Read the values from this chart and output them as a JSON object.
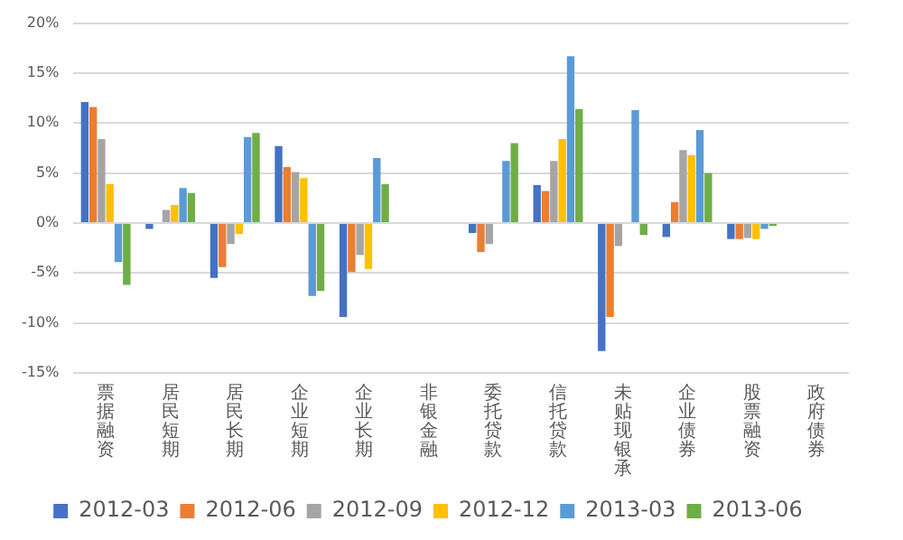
{
  "chart_data": {
    "type": "bar",
    "categories": [
      "票据融资",
      "居民短期",
      "居民长期",
      "企业短期",
      "企业长期",
      "非银金融",
      "委托贷款",
      "信托贷款",
      "未贴现银承",
      "企业债券",
      "股票融资",
      "政府债券"
    ],
    "series": [
      {
        "name": "2012-03",
        "color": "#4472c4",
        "values": [
          12.1,
          -0.6,
          -5.5,
          7.7,
          -9.4,
          null,
          -1.0,
          3.8,
          -12.8,
          -1.4,
          -1.6,
          null
        ]
      },
      {
        "name": "2012-06",
        "color": "#ed7d31",
        "values": [
          11.6,
          0,
          -4.4,
          5.6,
          -4.9,
          null,
          -2.9,
          3.2,
          -9.4,
          2.1,
          -1.6,
          null
        ]
      },
      {
        "name": "2012-09",
        "color": "#a5a5a5",
        "values": [
          8.4,
          1.3,
          -2.1,
          5.1,
          -3.2,
          null,
          -2.1,
          6.2,
          -2.3,
          7.3,
          -1.5,
          null
        ]
      },
      {
        "name": "2012-12",
        "color": "#ffc000",
        "values": [
          3.9,
          1.8,
          -1.1,
          4.5,
          -4.6,
          null,
          0,
          8.4,
          0,
          6.8,
          -1.6,
          null
        ]
      },
      {
        "name": "2013-03",
        "color": "#5b9bd5",
        "values": [
          -3.9,
          3.5,
          8.6,
          -7.3,
          6.5,
          null,
          6.2,
          16.7,
          11.3,
          9.3,
          -0.6,
          null
        ]
      },
      {
        "name": "2013-06",
        "color": "#70ad47",
        "values": [
          -6.2,
          3.0,
          9.0,
          -6.8,
          3.9,
          null,
          8.0,
          11.4,
          -1.2,
          5.0,
          -0.3,
          null
        ]
      }
    ],
    "ylim": [
      -15,
      20
    ],
    "yticks": [
      {
        "value": -15,
        "label": "-15%"
      },
      {
        "value": -10,
        "label": "-10%"
      },
      {
        "value": -5,
        "label": "-5%"
      },
      {
        "value": 0,
        "label": "0%"
      },
      {
        "value": 5,
        "label": "5%"
      },
      {
        "value": 10,
        "label": "10%"
      },
      {
        "value": 15,
        "label": "15%"
      },
      {
        "value": 20,
        "label": "20%"
      }
    ],
    "grid": "y",
    "legend": "bottom"
  }
}
